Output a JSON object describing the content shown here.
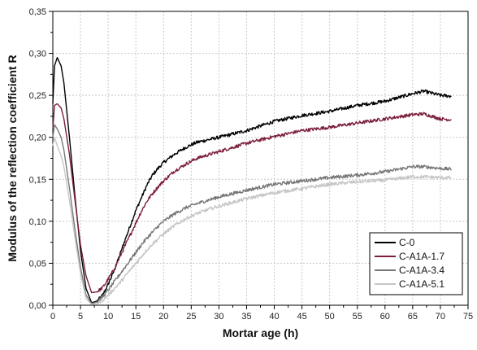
{
  "chart_data": {
    "type": "line",
    "xlabel": "Mortar age (h)",
    "ylabel": "Modulus of the reflection coefficient R",
    "xlim": [
      0,
      75
    ],
    "ylim": [
      0,
      0.35
    ],
    "xticks": [
      0,
      5,
      10,
      15,
      20,
      25,
      30,
      35,
      40,
      45,
      50,
      55,
      60,
      65,
      70,
      75
    ],
    "xtick_labels": [
      "0",
      "5",
      "10",
      "15",
      "20",
      "25",
      "30",
      "35",
      "40",
      "45",
      "50",
      "55",
      "60",
      "65",
      "70",
      "75"
    ],
    "yticks": [
      0,
      0.05,
      0.1,
      0.15,
      0.2,
      0.25,
      0.3,
      0.35
    ],
    "ytick_labels": [
      "0,00",
      "0,05",
      "0,10",
      "0,15",
      "0,20",
      "0,25",
      "0,30",
      "0,35"
    ],
    "grid": true,
    "legend_position": "bottom-right",
    "series": [
      {
        "name": "C-0",
        "color": "#000000",
        "x": [
          0,
          0.3,
          0.8,
          1.5,
          2,
          3,
          4,
          5,
          6,
          7,
          8,
          9,
          10,
          11,
          12,
          13,
          14,
          15,
          16,
          17,
          18,
          19,
          20,
          22,
          24,
          26,
          28,
          30,
          35,
          40,
          45,
          50,
          55,
          60,
          65,
          67,
          70,
          72
        ],
        "y": [
          0.24,
          0.285,
          0.295,
          0.285,
          0.265,
          0.2,
          0.13,
          0.065,
          0.02,
          0.003,
          0.005,
          0.012,
          0.025,
          0.04,
          0.058,
          0.077,
          0.095,
          0.113,
          0.128,
          0.143,
          0.155,
          0.163,
          0.17,
          0.18,
          0.188,
          0.194,
          0.197,
          0.2,
          0.208,
          0.219,
          0.226,
          0.231,
          0.238,
          0.243,
          0.252,
          0.255,
          0.25,
          0.249
        ]
      },
      {
        "name": "C-A1A-1.7",
        "color": "#7b1f3a",
        "x": [
          0,
          0.3,
          0.8,
          1.5,
          2,
          3,
          4,
          5,
          6,
          7,
          8,
          9,
          10,
          11,
          12,
          13,
          14,
          15,
          16,
          17,
          18,
          19,
          20,
          22,
          24,
          26,
          28,
          30,
          35,
          40,
          45,
          50,
          55,
          60,
          65,
          67,
          70,
          72
        ],
        "y": [
          0.21,
          0.238,
          0.24,
          0.235,
          0.222,
          0.18,
          0.125,
          0.072,
          0.035,
          0.015,
          0.016,
          0.021,
          0.031,
          0.042,
          0.056,
          0.07,
          0.084,
          0.098,
          0.112,
          0.124,
          0.133,
          0.141,
          0.148,
          0.16,
          0.168,
          0.175,
          0.179,
          0.183,
          0.193,
          0.201,
          0.208,
          0.212,
          0.217,
          0.222,
          0.227,
          0.228,
          0.222,
          0.221
        ]
      },
      {
        "name": "C-A1A-3.4",
        "color": "#777777",
        "x": [
          0,
          0.3,
          0.8,
          1.5,
          2,
          3,
          4,
          5,
          6,
          7,
          8,
          9,
          10,
          11,
          12,
          13,
          14,
          15,
          16,
          17,
          18,
          19,
          20,
          22,
          24,
          26,
          28,
          30,
          35,
          40,
          45,
          50,
          55,
          60,
          65,
          67,
          70,
          72
        ],
        "y": [
          0.2,
          0.215,
          0.21,
          0.2,
          0.185,
          0.14,
          0.09,
          0.045,
          0.012,
          0.002,
          0.004,
          0.01,
          0.018,
          0.027,
          0.036,
          0.045,
          0.054,
          0.063,
          0.072,
          0.08,
          0.087,
          0.094,
          0.1,
          0.109,
          0.116,
          0.121,
          0.125,
          0.129,
          0.137,
          0.144,
          0.148,
          0.152,
          0.155,
          0.159,
          0.165,
          0.165,
          0.163,
          0.162
        ]
      },
      {
        "name": "C-A1A-5.1",
        "color": "#c6c6c6",
        "x": [
          0,
          0.3,
          0.8,
          1.5,
          2,
          3,
          4,
          5,
          6,
          7,
          8,
          9,
          10,
          11,
          12,
          13,
          14,
          15,
          16,
          17,
          18,
          19,
          20,
          22,
          24,
          26,
          28,
          30,
          35,
          40,
          45,
          50,
          55,
          60,
          65,
          67,
          70,
          72
        ],
        "y": [
          0.19,
          0.2,
          0.19,
          0.178,
          0.165,
          0.125,
          0.08,
          0.038,
          0.008,
          0.001,
          0.002,
          0.006,
          0.012,
          0.019,
          0.026,
          0.034,
          0.042,
          0.05,
          0.058,
          0.066,
          0.073,
          0.079,
          0.085,
          0.095,
          0.103,
          0.109,
          0.114,
          0.118,
          0.127,
          0.134,
          0.139,
          0.144,
          0.147,
          0.149,
          0.153,
          0.153,
          0.152,
          0.152
        ]
      }
    ]
  }
}
